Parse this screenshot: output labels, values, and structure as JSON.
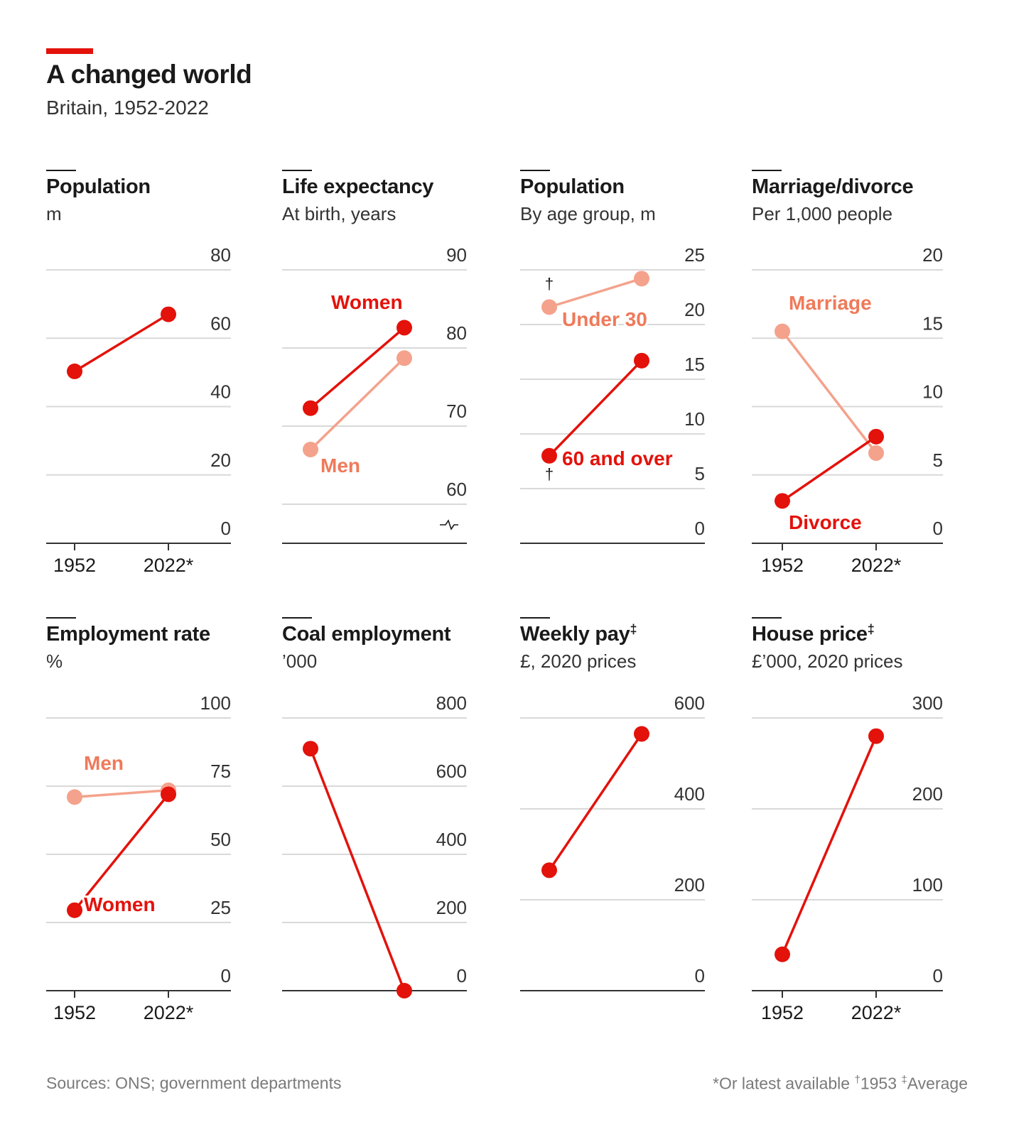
{
  "header": {
    "title": "A changed world",
    "subtitle": "Britain, 1952-2022"
  },
  "footer": {
    "source": "Sources: ONS; government departments",
    "note_star": "*Or latest available ",
    "note_dagger_mark": "†",
    "note_dagger_text": "1953 ",
    "note_ddagger_mark": "‡",
    "note_ddagger_text": "Average"
  },
  "colors": {
    "red": "#e3120b",
    "salmon": "#f4a28c",
    "salmon_text": "#ef7a5a",
    "grid": "#d9d9d9",
    "axis": "#333333",
    "text": "#1a1a1a"
  },
  "chart_data": [
    {
      "type": "line",
      "title": "Population",
      "subtitle": "m",
      "ylim": [
        0,
        80
      ],
      "yticks": [
        "0",
        "20",
        "40",
        "60",
        "80"
      ],
      "x": [
        "1952",
        "2022*"
      ],
      "show_x_labels": true,
      "series": [
        {
          "name": "",
          "color": "red",
          "values": [
            50.3,
            67
          ]
        }
      ]
    },
    {
      "type": "line",
      "title": "Life expectancy",
      "subtitle": "At birth, years",
      "ylim": [
        55,
        90
      ],
      "yticks": [
        "60",
        "70",
        "80",
        "90"
      ],
      "axis_break": true,
      "x": [
        "1952",
        "2022*"
      ],
      "show_x_labels": false,
      "series": [
        {
          "name": "Women",
          "color": "red",
          "values": [
            72.3,
            82.6
          ]
        },
        {
          "name": "Men",
          "color": "salmon",
          "values": [
            67,
            78.7
          ]
        }
      ]
    },
    {
      "type": "line",
      "title": "Population",
      "subtitle": "By age group, m",
      "ylim": [
        0,
        25
      ],
      "yticks": [
        "0",
        "5",
        "10",
        "15",
        "20",
        "25"
      ],
      "x": [
        "1953",
        "2022*"
      ],
      "show_x_labels": false,
      "series": [
        {
          "name": "Under 30",
          "color": "salmon",
          "values": [
            21.6,
            24.2
          ],
          "start_mark": "†"
        },
        {
          "name": "60 and over",
          "color": "red",
          "values": [
            8,
            16.7
          ],
          "start_mark": "†"
        }
      ]
    },
    {
      "type": "line",
      "title": "Marriage/divorce",
      "subtitle": "Per 1,000 people",
      "ylim": [
        0,
        20
      ],
      "yticks": [
        "0",
        "5",
        "10",
        "15",
        "20"
      ],
      "x": [
        "1952",
        "2022*"
      ],
      "show_x_labels": true,
      "series": [
        {
          "name": "Marriage",
          "color": "salmon",
          "values": [
            15.5,
            6.6
          ]
        },
        {
          "name": "Divorce",
          "color": "red",
          "values": [
            3.1,
            7.8
          ]
        }
      ]
    },
    {
      "type": "line",
      "title": "Employment rate",
      "subtitle": "%",
      "ylim": [
        0,
        100
      ],
      "yticks": [
        "0",
        "25",
        "50",
        "75",
        "100"
      ],
      "x": [
        "1952",
        "2022*"
      ],
      "show_x_labels": true,
      "series": [
        {
          "name": "Men",
          "color": "salmon",
          "values": [
            71,
            73.5
          ]
        },
        {
          "name": "Women",
          "color": "red",
          "values": [
            29.5,
            72
          ]
        }
      ]
    },
    {
      "type": "line",
      "title": "Coal employment",
      "subtitle": "’000",
      "ylim": [
        0,
        800
      ],
      "yticks": [
        "0",
        "200",
        "400",
        "600",
        "800"
      ],
      "x": [
        "1952",
        "2022*"
      ],
      "show_x_labels": false,
      "series": [
        {
          "name": "",
          "color": "red",
          "values": [
            710,
            0
          ]
        }
      ]
    },
    {
      "type": "line",
      "title": "Weekly pay",
      "title_mark": "‡",
      "subtitle": "£, 2020 prices",
      "ylim": [
        0,
        600
      ],
      "yticks": [
        "0",
        "200",
        "400",
        "600"
      ],
      "x": [
        "1952",
        "2022*"
      ],
      "show_x_labels": false,
      "series": [
        {
          "name": "",
          "color": "red",
          "values": [
            265,
            565
          ]
        }
      ]
    },
    {
      "type": "line",
      "title": "House price",
      "title_mark": "‡",
      "subtitle": "£’000, 2020 prices",
      "ylim": [
        0,
        300
      ],
      "yticks": [
        "0",
        "100",
        "200",
        "300"
      ],
      "x": [
        "1952",
        "2022*"
      ],
      "show_x_labels": true,
      "series": [
        {
          "name": "",
          "color": "red",
          "values": [
            40,
            280
          ]
        }
      ]
    }
  ]
}
